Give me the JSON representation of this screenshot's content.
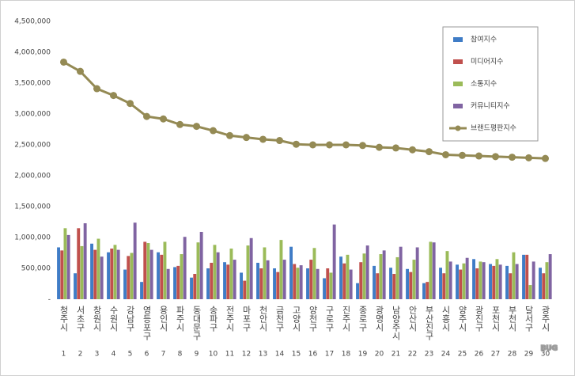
{
  "chart_data": {
    "type": "bar-line",
    "categories": [
      "청주시",
      "서초구",
      "창원시",
      "수원시",
      "강남구",
      "영등포구",
      "용인시",
      "파주시",
      "동대문구",
      "송파구",
      "전주시",
      "마포구",
      "천안시",
      "금천구",
      "고양시",
      "양천구",
      "구로구",
      "진주시",
      "종로구",
      "광명시",
      "남양주시",
      "안산시",
      "부산진구",
      "시흥시",
      "양주시",
      "광진구",
      "포천시",
      "부천시",
      "달서구",
      "광주시"
    ],
    "ranks": [
      1,
      2,
      3,
      4,
      5,
      6,
      7,
      8,
      9,
      10,
      11,
      12,
      13,
      14,
      15,
      16,
      17,
      18,
      19,
      20,
      21,
      22,
      23,
      24,
      25,
      26,
      27,
      28,
      29,
      30
    ],
    "ylim": [
      0,
      4500000
    ],
    "yticks": [
      {
        "value": 0,
        "label": "-"
      },
      {
        "value": 500000,
        "label": "500,000"
      },
      {
        "value": 1000000,
        "label": "1,000,000"
      },
      {
        "value": 1500000,
        "label": "1,500,000"
      },
      {
        "value": 2000000,
        "label": "2,000,000"
      },
      {
        "value": 2500000,
        "label": "2,500,000"
      },
      {
        "value": 3000000,
        "label": "3,000,000"
      },
      {
        "value": 3500000,
        "label": "3,500,000"
      },
      {
        "value": 4000000,
        "label": "4,000,000"
      },
      {
        "value": 4500000,
        "label": "4,500,000"
      }
    ],
    "grid": false,
    "legend": "top-right",
    "watermark": "BUG",
    "series": [
      {
        "name": "참여지수",
        "kind": "bar",
        "color": "#3f7cc6",
        "values": [
          840000,
          420000,
          900000,
          760000,
          480000,
          280000,
          760000,
          520000,
          350000,
          500000,
          600000,
          430000,
          590000,
          500000,
          850000,
          500000,
          340000,
          690000,
          260000,
          540000,
          510000,
          490000,
          260000,
          510000,
          560000,
          650000,
          570000,
          540000,
          720000,
          510000
        ]
      },
      {
        "name": "미디어지수",
        "kind": "bar",
        "color": "#c0504d",
        "values": [
          790000,
          1150000,
          800000,
          820000,
          700000,
          930000,
          720000,
          540000,
          410000,
          590000,
          560000,
          300000,
          500000,
          440000,
          570000,
          640000,
          500000,
          580000,
          600000,
          420000,
          410000,
          440000,
          280000,
          420000,
          480000,
          500000,
          540000,
          420000,
          720000,
          420000
        ]
      },
      {
        "name": "소통지수",
        "kind": "bar",
        "color": "#9bbb59",
        "values": [
          1150000,
          860000,
          980000,
          880000,
          750000,
          910000,
          930000,
          730000,
          920000,
          880000,
          820000,
          870000,
          840000,
          960000,
          510000,
          830000,
          430000,
          720000,
          740000,
          730000,
          680000,
          640000,
          930000,
          780000,
          580000,
          610000,
          650000,
          760000,
          230000,
          600000
        ]
      },
      {
        "name": "커뮤니티지수",
        "kind": "bar",
        "color": "#8064a2",
        "values": [
          1040000,
          1230000,
          690000,
          800000,
          1240000,
          800000,
          490000,
          1010000,
          1090000,
          760000,
          640000,
          990000,
          630000,
          640000,
          550000,
          490000,
          1210000,
          480000,
          870000,
          790000,
          850000,
          840000,
          920000,
          610000,
          670000,
          600000,
          560000,
          570000,
          610000,
          730000
        ]
      },
      {
        "name": "브랜드평판지수",
        "kind": "line",
        "color": "#948a54",
        "values": [
          3840000,
          3690000,
          3410000,
          3300000,
          3170000,
          2960000,
          2920000,
          2830000,
          2800000,
          2730000,
          2650000,
          2620000,
          2590000,
          2570000,
          2510000,
          2500000,
          2500000,
          2500000,
          2490000,
          2460000,
          2450000,
          2420000,
          2390000,
          2340000,
          2330000,
          2320000,
          2310000,
          2300000,
          2290000,
          2280000
        ]
      }
    ]
  }
}
